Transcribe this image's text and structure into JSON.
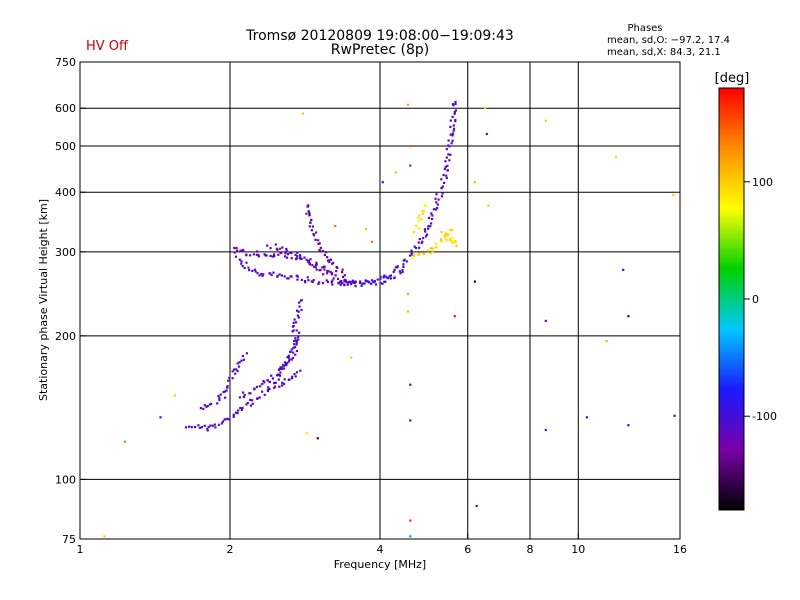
{
  "header": {
    "title_line1": "Tromsø 20120809 19:08:00−19:09:43",
    "title_line2": "RwPretec (8p)",
    "status": "HV Off",
    "status_color": "#cc0000",
    "phases_title": "Phases",
    "phases_o": "mean, sd,O: −97.2, 17.4",
    "phases_x": "mean, sd,X:  84.3, 21.1"
  },
  "chart_data": {
    "type": "scatter",
    "title": "Tromsø 20120809 19:08:00−19:09:43",
    "subtitle": "RwPretec (8p)",
    "xlabel": "Frequency [MHz]",
    "ylabel": "Stationary phase Virtual Height [km]",
    "xscale": "log",
    "yscale": "log",
    "xlim": [
      1,
      16
    ],
    "ylim": [
      75,
      750
    ],
    "x_ticks": [
      1,
      2,
      4,
      6,
      8,
      10,
      16
    ],
    "y_ticks": [
      75,
      100,
      200,
      300,
      400,
      500,
      600,
      750
    ],
    "x_gridlines": [
      2,
      4,
      6,
      8,
      10
    ],
    "y_gridlines": [
      100,
      200,
      300,
      400,
      500,
      600
    ],
    "colorbar": {
      "label": "[deg]",
      "range": [
        -180,
        180
      ],
      "ticks": [
        -100,
        0,
        100
      ],
      "colors": [
        "#000000",
        "#7a00a8",
        "#1a1aff",
        "#00c8ff",
        "#00d000",
        "#ffff00",
        "#ff8c00",
        "#ff0000"
      ]
    },
    "traces": [
      {
        "x": [
          1.65,
          1.8,
          1.9,
          2.0,
          2.1,
          2.2,
          2.3,
          2.4,
          2.5,
          2.6,
          2.7,
          2.75
        ],
        "y": [
          130,
          128,
          130,
          135,
          140,
          145,
          150,
          155,
          158,
          162,
          166,
          170
        ],
        "phase": -110
      },
      {
        "x": [
          1.75,
          1.85,
          1.95,
          2.0,
          2.05,
          2.1,
          2.15
        ],
        "y": [
          140,
          145,
          150,
          160,
          170,
          178,
          185
        ],
        "phase": -108
      },
      {
        "x": [
          2.1,
          2.2,
          2.3,
          2.4,
          2.5,
          2.6,
          2.7,
          2.75
        ],
        "y": [
          150,
          153,
          157,
          162,
          168,
          175,
          188,
          200
        ],
        "phase": -112
      },
      {
        "x": [
          2.45,
          2.55,
          2.65,
          2.75
        ],
        "y": [
          160,
          170,
          185,
          205
        ],
        "phase": -105
      },
      {
        "x": [
          2.65,
          2.7,
          2.75,
          2.8
        ],
        "y": [
          205,
          215,
          225,
          240
        ],
        "phase": -100
      },
      {
        "x": [
          2.05,
          2.1,
          2.2,
          2.3,
          2.5,
          2.7,
          3.0,
          3.3,
          3.6,
          3.9,
          4.2,
          4.5,
          4.8,
          5.0,
          5.2,
          5.4,
          5.5,
          5.6,
          5.65
        ],
        "y": [
          300,
          285,
          275,
          270,
          268,
          265,
          260,
          258,
          258,
          262,
          270,
          285,
          310,
          340,
          380,
          430,
          490,
          560,
          630
        ],
        "phase": -105
      },
      {
        "x": [
          2.05,
          2.1,
          2.2,
          2.4,
          2.6,
          2.8
        ],
        "y": [
          305,
          300,
          298,
          296,
          295,
          292
        ],
        "phase": -115
      },
      {
        "x": [
          2.8,
          2.9,
          3.0,
          3.1,
          3.2,
          3.4,
          3.6
        ],
        "y": [
          290,
          282,
          276,
          272,
          268,
          262,
          258
        ],
        "phase": -125
      },
      {
        "x": [
          2.85,
          2.9,
          3.0,
          3.1,
          3.2,
          3.3,
          3.4
        ],
        "y": [
          380,
          340,
          310,
          295,
          285,
          275,
          268
        ],
        "phase": -130
      },
      {
        "x": [
          2.4,
          2.6,
          2.8,
          3.0,
          3.2
        ],
        "y": [
          310,
          300,
          292,
          282,
          272
        ],
        "phase": -108
      },
      {
        "x": [
          3.3,
          3.6,
          3.9,
          4.2,
          4.5
        ],
        "y": [
          258,
          256,
          258,
          264,
          275
        ],
        "phase": -100
      },
      {
        "x": [
          4.6,
          4.8,
          5.0,
          5.2,
          5.4,
          5.6
        ],
        "y": [
          290,
          295,
          300,
          310,
          320,
          340
        ],
        "phase": 95
      },
      {
        "x": [
          5.35,
          5.5,
          5.6,
          5.7
        ],
        "y": [
          330,
          320,
          315,
          310
        ],
        "phase": 90
      },
      {
        "x": [
          4.7,
          4.8,
          4.9
        ],
        "y": [
          330,
          350,
          380
        ],
        "phase": 85
      }
    ],
    "points": [
      {
        "x": 1.23,
        "y": 120,
        "phase": 40
      },
      {
        "x": 1.12,
        "y": 76,
        "phase": 100
      },
      {
        "x": 1.45,
        "y": 135,
        "phase": -95
      },
      {
        "x": 1.55,
        "y": 150,
        "phase": 100
      },
      {
        "x": 2.8,
        "y": 585,
        "phase": 100
      },
      {
        "x": 2.85,
        "y": 125,
        "phase": 95
      },
      {
        "x": 3.0,
        "y": 122,
        "phase": -150
      },
      {
        "x": 3.25,
        "y": 340,
        "phase": 140
      },
      {
        "x": 3.5,
        "y": 180,
        "phase": 100
      },
      {
        "x": 3.75,
        "y": 335,
        "phase": 100
      },
      {
        "x": 3.85,
        "y": 315,
        "phase": 140
      },
      {
        "x": 4.05,
        "y": 420,
        "phase": -100
      },
      {
        "x": 4.3,
        "y": 440,
        "phase": 110
      },
      {
        "x": 4.55,
        "y": 610,
        "phase": 120
      },
      {
        "x": 4.6,
        "y": 500,
        "phase": 150
      },
      {
        "x": 4.6,
        "y": 455,
        "phase": -60
      },
      {
        "x": 4.55,
        "y": 245,
        "phase": 120
      },
      {
        "x": 4.55,
        "y": 225,
        "phase": 110
      },
      {
        "x": 4.6,
        "y": 158,
        "phase": -110
      },
      {
        "x": 4.6,
        "y": 133,
        "phase": -110
      },
      {
        "x": 4.6,
        "y": 82,
        "phase": 160
      },
      {
        "x": 4.6,
        "y": 76,
        "phase": -40
      },
      {
        "x": 5.65,
        "y": 220,
        "phase": 175
      },
      {
        "x": 6.2,
        "y": 420,
        "phase": 110
      },
      {
        "x": 6.2,
        "y": 260,
        "phase": -160
      },
      {
        "x": 6.25,
        "y": 88,
        "phase": -110
      },
      {
        "x": 6.5,
        "y": 600,
        "phase": 100
      },
      {
        "x": 6.55,
        "y": 530,
        "phase": -105
      },
      {
        "x": 6.6,
        "y": 375,
        "phase": 100
      },
      {
        "x": 8.6,
        "y": 565,
        "phase": 100
      },
      {
        "x": 8.6,
        "y": 215,
        "phase": -130
      },
      {
        "x": 8.6,
        "y": 127,
        "phase": -110
      },
      {
        "x": 10.4,
        "y": 135,
        "phase": -90
      },
      {
        "x": 11.4,
        "y": 195,
        "phase": 110
      },
      {
        "x": 11.9,
        "y": 475,
        "phase": 100
      },
      {
        "x": 12.3,
        "y": 275,
        "phase": -100
      },
      {
        "x": 12.6,
        "y": 220,
        "phase": -150
      },
      {
        "x": 12.6,
        "y": 130,
        "phase": -85
      },
      {
        "x": 15.5,
        "y": 395,
        "phase": 100
      },
      {
        "x": 15.6,
        "y": 136,
        "phase": -100
      }
    ]
  }
}
